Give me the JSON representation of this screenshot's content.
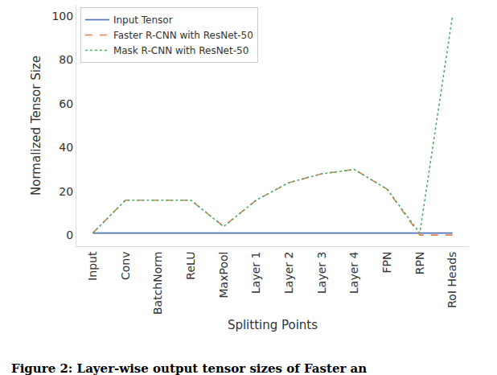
{
  "chart_data": {
    "type": "line",
    "x_label": "Splitting Points",
    "y_label": "Normalized Tensor Size",
    "caption": "Figure 2: Layer-wise output tensor sizes of Faster an",
    "categories": [
      "Input",
      "Conv",
      "BatchNorm",
      "ReLU",
      "MaxPool",
      "Layer 1",
      "Layer 2",
      "Layer 3",
      "Layer 4",
      "FPN",
      "RPN",
      "RoI Heads"
    ],
    "series": [
      {
        "name": "Input Tensor",
        "color": "#4c72b0",
        "line_style": "solid",
        "values": [
          1,
          1,
          1,
          1,
          1,
          1,
          1,
          1,
          1,
          1,
          1,
          1
        ]
      },
      {
        "name": "Faster R-CNN with ResNet-50",
        "color": "#dd8452",
        "line_style": "dash",
        "values": [
          1,
          16,
          16,
          16,
          4,
          16,
          24,
          28,
          30,
          21,
          0.1,
          0.1
        ]
      },
      {
        "name": "Mask R-CNN with ResNet-50",
        "color": "#55a868",
        "line_style": "dot",
        "values": [
          1,
          16,
          16,
          16,
          4,
          16,
          24,
          28,
          30,
          21,
          1,
          100
        ]
      }
    ],
    "ylim": [
      -5,
      105
    ],
    "yticks": [
      0,
      20,
      40,
      60,
      80,
      100
    ],
    "grid": false,
    "legend": "upper left"
  }
}
